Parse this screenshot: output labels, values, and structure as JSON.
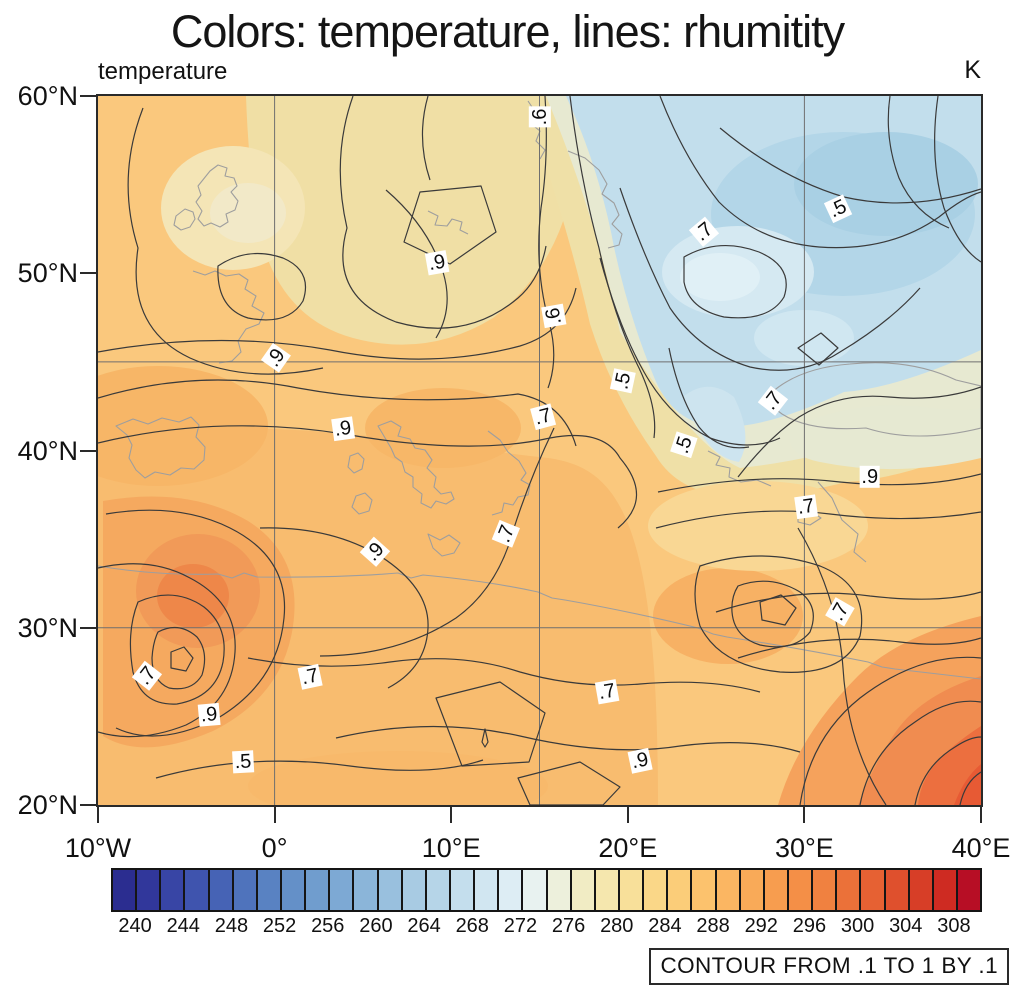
{
  "title": "Colors: temperature, lines: rhumitity",
  "left_axis_title": "temperature",
  "right_axis_title": "K",
  "contour_info": "CONTOUR FROM .1 TO 1 BY .1",
  "chart_data": {
    "type": "heatmap",
    "subtype": "filled-contour-map-with-line-contours",
    "title": "Colors: temperature, lines: rhumitity",
    "fill_field": "temperature",
    "fill_units": "K",
    "line_field": "rhumitity",
    "line_contour_spec": "CONTOUR FROM .1 TO 1 BY .1",
    "lon_range": [
      -10,
      40
    ],
    "lat_range": [
      20,
      60
    ],
    "grid": true,
    "grid_lons": [
      0,
      15,
      30
    ],
    "grid_lats": [
      30,
      45
    ],
    "x_ticks": [
      {
        "label": "10°W",
        "lon": -10
      },
      {
        "label": "0°",
        "lon": 0
      },
      {
        "label": "10°E",
        "lon": 10
      },
      {
        "label": "20°E",
        "lon": 20
      },
      {
        "label": "30°E",
        "lon": 30
      },
      {
        "label": "40°E",
        "lon": 40
      }
    ],
    "y_ticks": [
      {
        "label": "60°N",
        "lat": 60
      },
      {
        "label": "50°N",
        "lat": 50
      },
      {
        "label": "40°N",
        "lat": 40
      },
      {
        "label": "30°N",
        "lat": 30
      },
      {
        "label": "20°N",
        "lat": 20
      }
    ],
    "colorbar": {
      "orientation": "horizontal",
      "level_min": 238,
      "level_max": 310,
      "level_step": 2,
      "tick_labels": [
        "240",
        "244",
        "248",
        "252",
        "256",
        "260",
        "264",
        "268",
        "272",
        "276",
        "280",
        "284",
        "288",
        "292",
        "296",
        "300",
        "304",
        "308"
      ],
      "cell_colors": [
        "#2B2D90",
        "#31379B",
        "#3845A5",
        "#3F54AE",
        "#4663B5",
        "#4F73BC",
        "#5982C2",
        "#6490C8",
        "#709DCE",
        "#7DA9D4",
        "#8BB5D9",
        "#99C0DE",
        "#A8CBE3",
        "#B6D5E8",
        "#C4DEED",
        "#D1E6F1",
        "#DDEDF4",
        "#E8F2F0",
        "#EDF0DC",
        "#F1ECC4",
        "#F5E7AE",
        "#F8E09A",
        "#FAD788",
        "#FBCD79",
        "#FCC26D",
        "#FBB662",
        "#F9AA58",
        "#F79D4F",
        "#F48F47",
        "#F08140",
        "#EB7139",
        "#E66133",
        "#DF502D",
        "#D73E27",
        "#CE2B22",
        "#B70E25"
      ]
    },
    "contour_labels": [
      {
        "text": ".6",
        "lon": 15.0,
        "lat": 58.8,
        "rot": -90
      },
      {
        "text": ".5",
        "lon": 31.9,
        "lat": 53.6,
        "rot": -25
      },
      {
        "text": ".7",
        "lon": 24.3,
        "lat": 52.3,
        "rot": -40
      },
      {
        "text": ".9",
        "lon": 9.2,
        "lat": 50.6,
        "rot": -10
      },
      {
        "text": ".6",
        "lon": 15.8,
        "lat": 47.6,
        "rot": -100
      },
      {
        "text": ".9",
        "lon": 0.1,
        "lat": 45.2,
        "rot": -55
      },
      {
        "text": ".5",
        "lon": 19.7,
        "lat": 43.9,
        "rot": -78
      },
      {
        "text": ".7",
        "lon": 15.2,
        "lat": 41.9,
        "rot": -15
      },
      {
        "text": ".7",
        "lon": 28.2,
        "lat": 42.8,
        "rot": -52
      },
      {
        "text": ".5",
        "lon": 23.2,
        "lat": 40.3,
        "rot": -72
      },
      {
        "text": ".9",
        "lon": 3.9,
        "lat": 41.2,
        "rot": -8
      },
      {
        "text": ".9",
        "lon": 33.7,
        "lat": 38.5,
        "rot": 0
      },
      {
        "text": ".7",
        "lon": 30.1,
        "lat": 36.8,
        "rot": -8
      },
      {
        "text": ".7",
        "lon": 13.1,
        "lat": 35.3,
        "rot": -68
      },
      {
        "text": ".9",
        "lon": 5.7,
        "lat": 34.3,
        "rot": -48
      },
      {
        "text": ".7",
        "lon": 32.0,
        "lat": 30.9,
        "rot": -60
      },
      {
        "text": ".7",
        "lon": -7.2,
        "lat": 27.3,
        "rot": -52
      },
      {
        "text": ".7",
        "lon": 2.0,
        "lat": 27.2,
        "rot": -12
      },
      {
        "text": ".9",
        "lon": -3.7,
        "lat": 25.1,
        "rot": -5
      },
      {
        "text": ".7",
        "lon": 18.8,
        "lat": 26.4,
        "rot": -10
      },
      {
        "text": ".9",
        "lon": 20.7,
        "lat": 22.5,
        "rot": -12
      },
      {
        "text": ".5",
        "lon": -1.8,
        "lat": 22.4,
        "rot": -3
      }
    ],
    "fill_palette_endpoints": {
      "cold": "#2B2D90",
      "neutral": "#E8F2F0",
      "hot": "#B70E25"
    }
  }
}
